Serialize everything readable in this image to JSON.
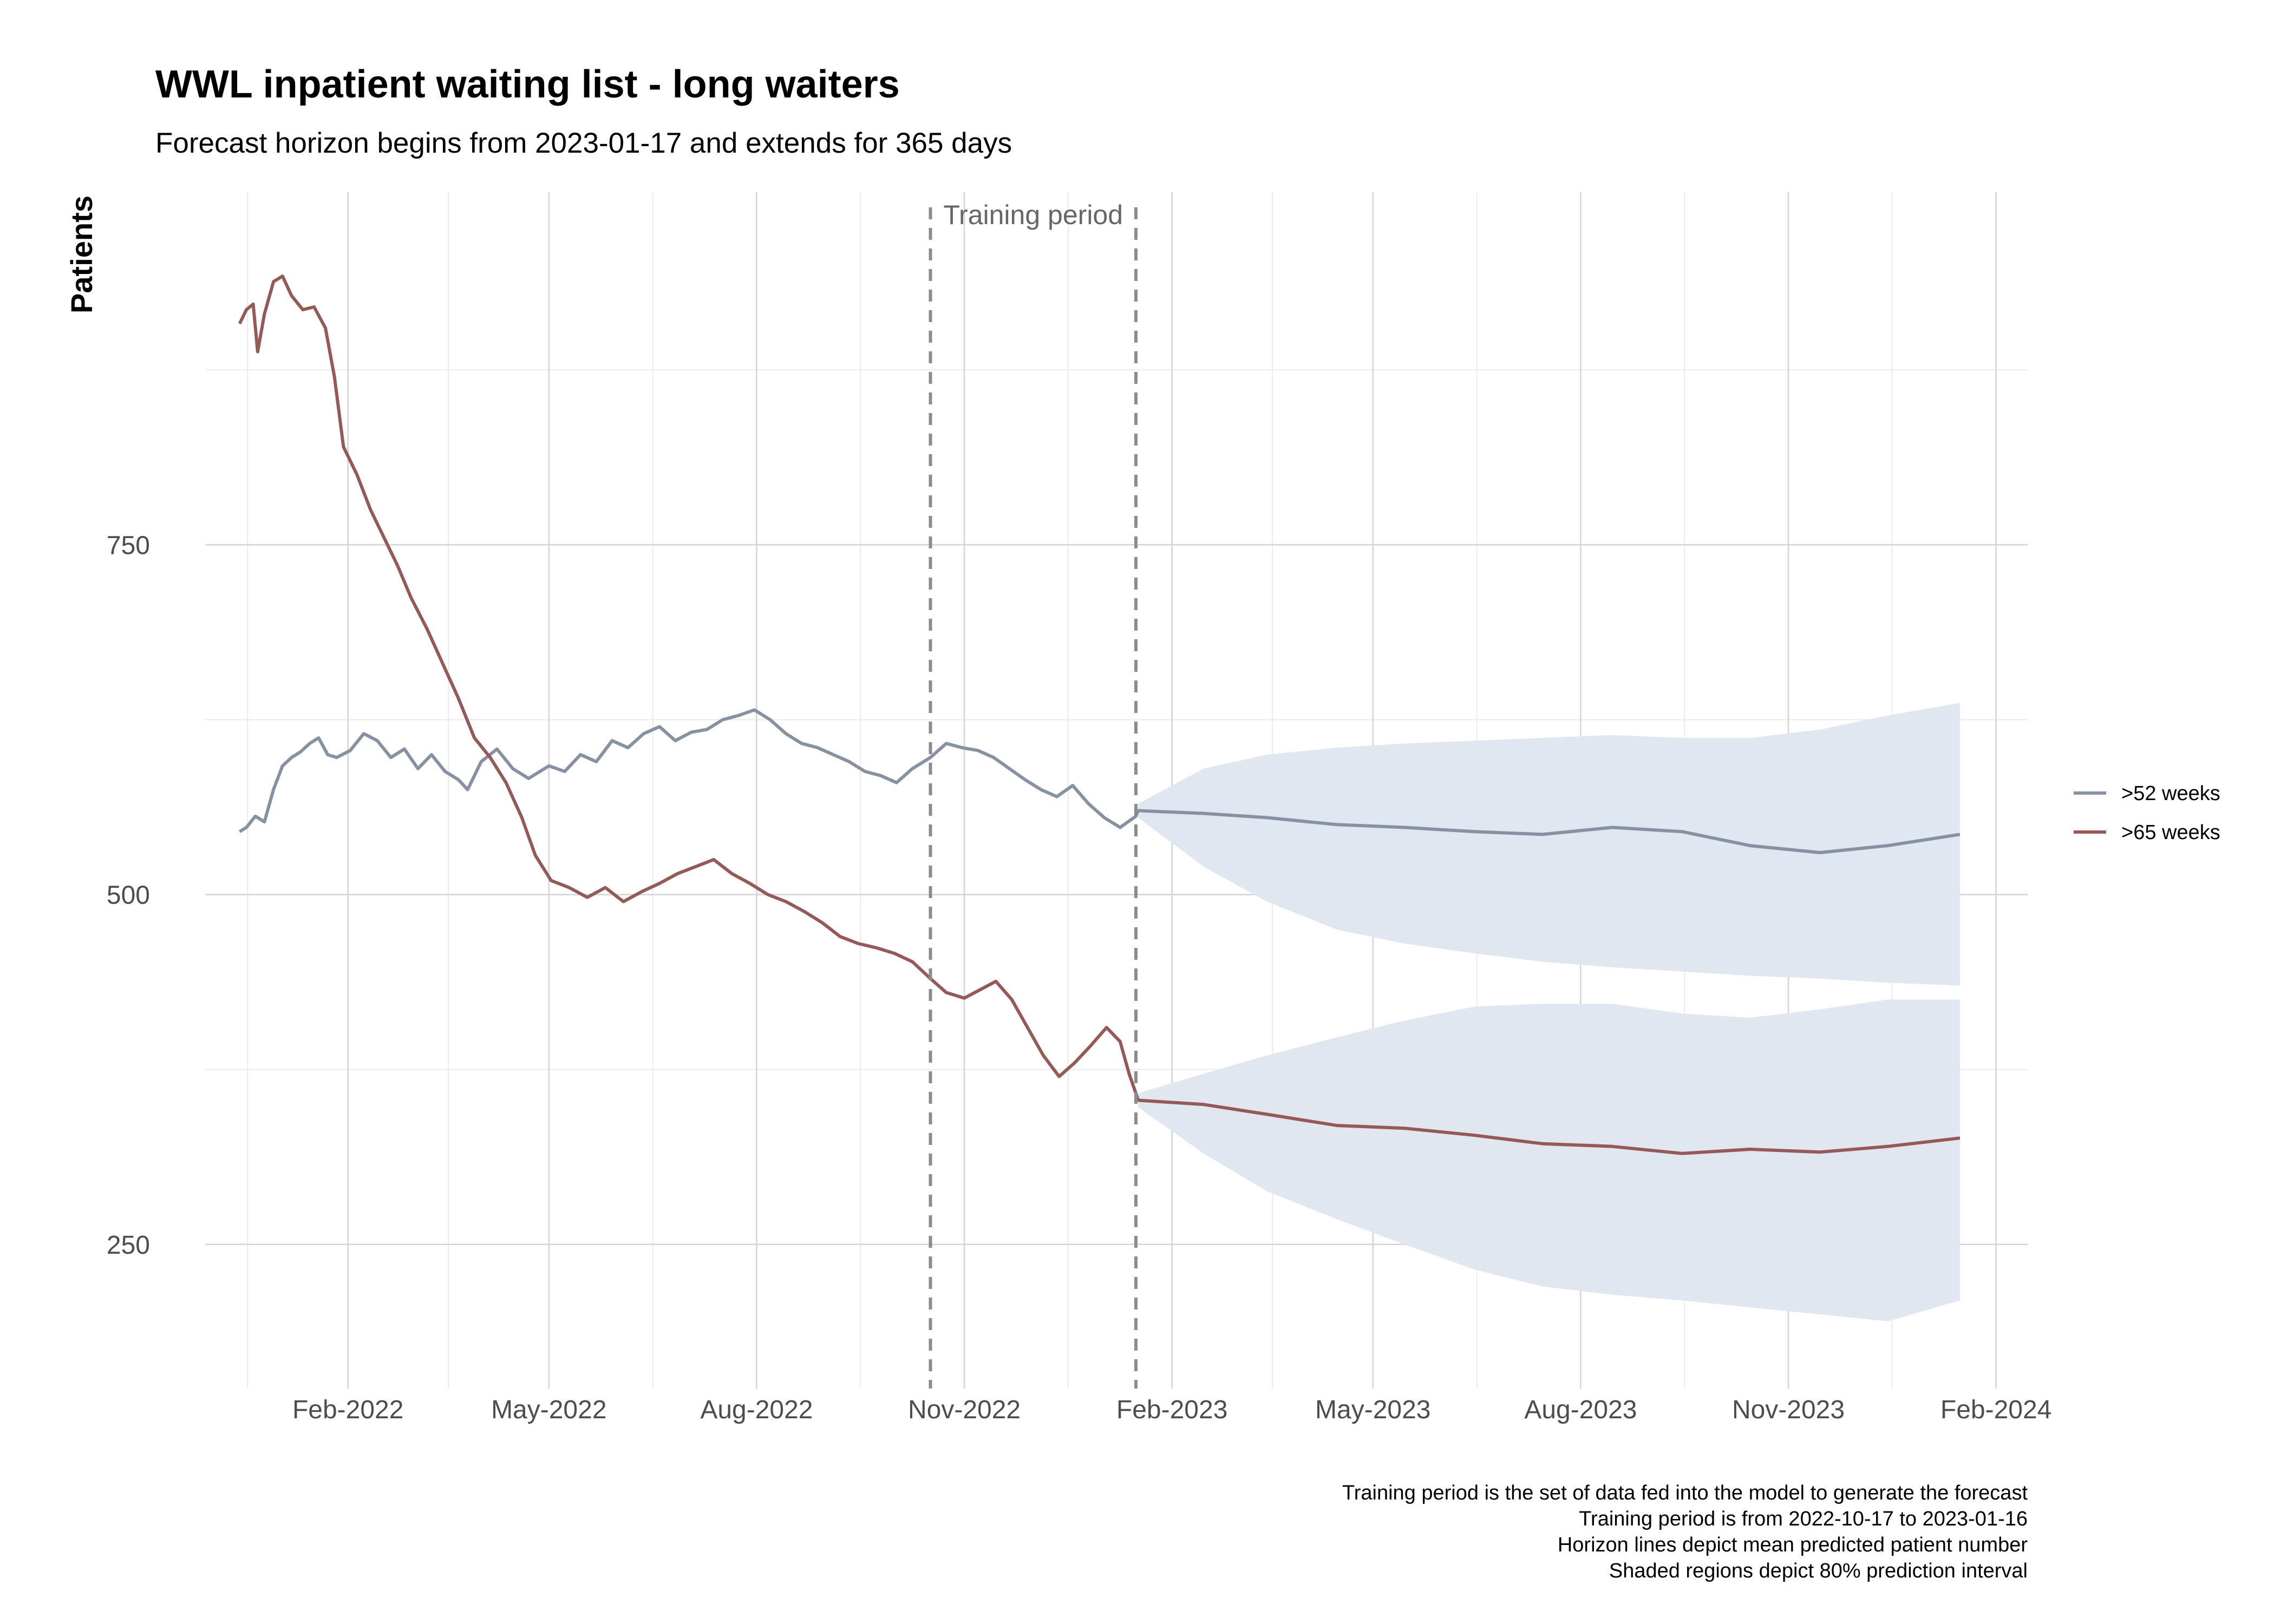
{
  "chart_data": {
    "type": "line",
    "title": "WWL inpatient waiting list - long waiters",
    "subtitle": "Forecast horizon begins from 2023-01-17 and extends for 365 days",
    "xlabel": "",
    "ylabel": "Patients",
    "x_tick_labels": [
      "Feb-2022",
      "May-2022",
      "Aug-2022",
      "Nov-2022",
      "Feb-2023",
      "May-2023",
      "Aug-2023",
      "Nov-2023",
      "Feb-2024"
    ],
    "x_tick_dates": [
      "2022-02-01",
      "2022-05-01",
      "2022-08-01",
      "2022-11-01",
      "2023-02-01",
      "2023-05-01",
      "2023-08-01",
      "2023-11-01",
      "2024-02-01"
    ],
    "xlim": [
      "2021-11-30",
      "2024-02-15"
    ],
    "y_ticks": [
      250,
      500,
      750
    ],
    "ylim": [
      147,
      1002
    ],
    "grid": true,
    "legend_position": "right",
    "annotation": {
      "label": "Training period",
      "start": "2022-10-17",
      "end": "2023-01-16"
    },
    "series": [
      {
        "name": ">52 weeks",
        "color": "#8691a2",
        "actual": [
          [
            "2021-12-15",
            545
          ],
          [
            "2021-12-18",
            548
          ],
          [
            "2021-12-22",
            556
          ],
          [
            "2021-12-26",
            552
          ],
          [
            "2021-12-30",
            575
          ],
          [
            "2022-01-03",
            592
          ],
          [
            "2022-01-07",
            598
          ],
          [
            "2022-01-11",
            602
          ],
          [
            "2022-01-15",
            608
          ],
          [
            "2022-01-19",
            612
          ],
          [
            "2022-01-23",
            600
          ],
          [
            "2022-01-27",
            598
          ],
          [
            "2022-02-02",
            603
          ],
          [
            "2022-02-08",
            615
          ],
          [
            "2022-02-14",
            610
          ],
          [
            "2022-02-20",
            598
          ],
          [
            "2022-02-26",
            604
          ],
          [
            "2022-03-04",
            590
          ],
          [
            "2022-03-10",
            600
          ],
          [
            "2022-03-16",
            588
          ],
          [
            "2022-03-22",
            582
          ],
          [
            "2022-03-26",
            575
          ],
          [
            "2022-04-01",
            595
          ],
          [
            "2022-04-08",
            604
          ],
          [
            "2022-04-15",
            590
          ],
          [
            "2022-04-22",
            583
          ],
          [
            "2022-05-01",
            592
          ],
          [
            "2022-05-08",
            588
          ],
          [
            "2022-05-15",
            600
          ],
          [
            "2022-05-22",
            595
          ],
          [
            "2022-05-29",
            610
          ],
          [
            "2022-06-05",
            605
          ],
          [
            "2022-06-12",
            615
          ],
          [
            "2022-06-19",
            620
          ],
          [
            "2022-06-26",
            610
          ],
          [
            "2022-07-03",
            616
          ],
          [
            "2022-07-10",
            618
          ],
          [
            "2022-07-17",
            625
          ],
          [
            "2022-07-24",
            628
          ],
          [
            "2022-07-31",
            632
          ],
          [
            "2022-08-07",
            625
          ],
          [
            "2022-08-14",
            615
          ],
          [
            "2022-08-21",
            608
          ],
          [
            "2022-08-28",
            605
          ],
          [
            "2022-09-04",
            600
          ],
          [
            "2022-09-11",
            595
          ],
          [
            "2022-09-18",
            588
          ],
          [
            "2022-09-25",
            585
          ],
          [
            "2022-10-02",
            580
          ],
          [
            "2022-10-09",
            590
          ],
          [
            "2022-10-17",
            598
          ],
          [
            "2022-10-24",
            608
          ],
          [
            "2022-10-31",
            605
          ],
          [
            "2022-11-07",
            603
          ],
          [
            "2022-11-14",
            598
          ],
          [
            "2022-11-21",
            590
          ],
          [
            "2022-11-28",
            582
          ],
          [
            "2022-12-05",
            575
          ],
          [
            "2022-12-12",
            570
          ],
          [
            "2022-12-19",
            578
          ],
          [
            "2022-12-26",
            565
          ],
          [
            "2023-01-02",
            555
          ],
          [
            "2023-01-09",
            548
          ],
          [
            "2023-01-16",
            556
          ]
        ],
        "forecast_mean": [
          [
            "2023-01-17",
            560
          ],
          [
            "2023-02-15",
            558
          ],
          [
            "2023-03-15",
            555
          ],
          [
            "2023-04-15",
            550
          ],
          [
            "2023-05-15",
            548
          ],
          [
            "2023-06-15",
            545
          ],
          [
            "2023-07-15",
            543
          ],
          [
            "2023-08-15",
            548
          ],
          [
            "2023-09-15",
            545
          ],
          [
            "2023-10-15",
            535
          ],
          [
            "2023-11-15",
            530
          ],
          [
            "2023-12-15",
            535
          ],
          [
            "2024-01-16",
            543
          ]
        ],
        "interval_80": [
          [
            "2023-01-17",
            555,
            565
          ],
          [
            "2023-02-15",
            520,
            590
          ],
          [
            "2023-03-15",
            495,
            600
          ],
          [
            "2023-04-15",
            475,
            605
          ],
          [
            "2023-05-15",
            465,
            608
          ],
          [
            "2023-06-15",
            458,
            610
          ],
          [
            "2023-07-15",
            452,
            612
          ],
          [
            "2023-08-15",
            448,
            614
          ],
          [
            "2023-09-15",
            445,
            612
          ],
          [
            "2023-10-15",
            442,
            612
          ],
          [
            "2023-11-15",
            440,
            618
          ],
          [
            "2023-12-15",
            437,
            628
          ],
          [
            "2024-01-16",
            435,
            637
          ]
        ]
      },
      {
        "name": ">65 weeks",
        "color": "#955a58",
        "actual": [
          [
            "2021-12-15",
            908
          ],
          [
            "2021-12-18",
            918
          ],
          [
            "2021-12-21",
            922
          ],
          [
            "2021-12-23",
            888
          ],
          [
            "2021-12-26",
            915
          ],
          [
            "2021-12-30",
            938
          ],
          [
            "2022-01-03",
            942
          ],
          [
            "2022-01-07",
            928
          ],
          [
            "2022-01-12",
            918
          ],
          [
            "2022-01-17",
            920
          ],
          [
            "2022-01-22",
            905
          ],
          [
            "2022-01-26",
            870
          ],
          [
            "2022-01-30",
            820
          ],
          [
            "2022-02-05",
            800
          ],
          [
            "2022-02-11",
            775
          ],
          [
            "2022-02-17",
            755
          ],
          [
            "2022-02-23",
            735
          ],
          [
            "2022-03-01",
            712
          ],
          [
            "2022-03-08",
            690
          ],
          [
            "2022-03-15",
            665
          ],
          [
            "2022-03-22",
            640
          ],
          [
            "2022-03-29",
            612
          ],
          [
            "2022-04-05",
            598
          ],
          [
            "2022-04-12",
            580
          ],
          [
            "2022-04-19",
            555
          ],
          [
            "2022-04-25",
            528
          ],
          [
            "2022-05-02",
            510
          ],
          [
            "2022-05-10",
            505
          ],
          [
            "2022-05-18",
            498
          ],
          [
            "2022-05-26",
            505
          ],
          [
            "2022-06-03",
            495
          ],
          [
            "2022-06-11",
            502
          ],
          [
            "2022-06-19",
            508
          ],
          [
            "2022-06-27",
            515
          ],
          [
            "2022-07-05",
            520
          ],
          [
            "2022-07-13",
            525
          ],
          [
            "2022-07-21",
            515
          ],
          [
            "2022-07-29",
            508
          ],
          [
            "2022-08-06",
            500
          ],
          [
            "2022-08-14",
            495
          ],
          [
            "2022-08-22",
            488
          ],
          [
            "2022-08-30",
            480
          ],
          [
            "2022-09-07",
            470
          ],
          [
            "2022-09-15",
            465
          ],
          [
            "2022-09-23",
            462
          ],
          [
            "2022-10-01",
            458
          ],
          [
            "2022-10-09",
            452
          ],
          [
            "2022-10-17",
            440
          ],
          [
            "2022-10-24",
            430
          ],
          [
            "2022-11-01",
            426
          ],
          [
            "2022-11-08",
            432
          ],
          [
            "2022-11-15",
            438
          ],
          [
            "2022-11-22",
            425
          ],
          [
            "2022-11-29",
            405
          ],
          [
            "2022-12-06",
            385
          ],
          [
            "2022-12-13",
            370
          ],
          [
            "2022-12-20",
            380
          ],
          [
            "2022-12-27",
            392
          ],
          [
            "2023-01-03",
            405
          ],
          [
            "2023-01-09",
            395
          ],
          [
            "2023-01-13",
            372
          ],
          [
            "2023-01-16",
            358
          ]
        ],
        "forecast_mean": [
          [
            "2023-01-17",
            353
          ],
          [
            "2023-02-15",
            350
          ],
          [
            "2023-03-15",
            343
          ],
          [
            "2023-04-15",
            335
          ],
          [
            "2023-05-15",
            333
          ],
          [
            "2023-06-15",
            328
          ],
          [
            "2023-07-15",
            322
          ],
          [
            "2023-08-15",
            320
          ],
          [
            "2023-09-15",
            315
          ],
          [
            "2023-10-15",
            318
          ],
          [
            "2023-11-15",
            316
          ],
          [
            "2023-12-15",
            320
          ],
          [
            "2024-01-16",
            326
          ]
        ],
        "interval_80": [
          [
            "2023-01-17",
            348,
            358
          ],
          [
            "2023-02-15",
            315,
            372
          ],
          [
            "2023-03-15",
            288,
            385
          ],
          [
            "2023-04-15",
            268,
            398
          ],
          [
            "2023-05-15",
            250,
            410
          ],
          [
            "2023-06-15",
            232,
            420
          ],
          [
            "2023-07-15",
            220,
            422
          ],
          [
            "2023-08-15",
            214,
            422
          ],
          [
            "2023-09-15",
            210,
            415
          ],
          [
            "2023-10-15",
            205,
            412
          ],
          [
            "2023-11-15",
            200,
            418
          ],
          [
            "2023-12-15",
            195,
            425
          ],
          [
            "2024-01-16",
            210,
            425
          ]
        ]
      }
    ],
    "interval_color": "#e1e7f0",
    "caption": [
      "Training period is the set of data fed into the model to generate the forecast",
      "Training period is from 2022-10-17 to 2023-01-16",
      "Horizon lines depict mean predicted patient number",
      "Shaded regions depict 80% prediction interval"
    ]
  }
}
